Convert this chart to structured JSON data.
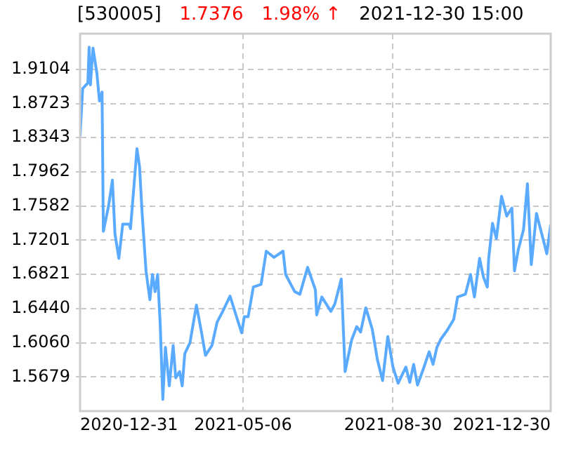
{
  "chart_data": {
    "type": "line",
    "title": "[530005]",
    "annotations": [
      "1.7376",
      "1.98% ↑",
      "2021-12-30 15:00"
    ],
    "x": [
      "2020-12-31",
      "2021-01-02",
      "2021-01-06",
      "2021-01-07",
      "2021-01-08",
      "2021-01-10",
      "2021-01-13",
      "2021-01-15",
      "2021-01-17",
      "2021-01-18",
      "2021-01-22",
      "2021-01-25",
      "2021-01-27",
      "2021-01-30",
      "2021-02-02",
      "2021-02-07",
      "2021-02-08",
      "2021-02-13",
      "2021-02-15",
      "2021-02-17",
      "2021-02-20",
      "2021-02-23",
      "2021-02-25",
      "2021-02-27",
      "2021-03-01",
      "2021-03-03",
      "2021-03-05",
      "2021-03-07",
      "2021-03-10",
      "2021-03-13",
      "2021-03-15",
      "2021-03-18",
      "2021-03-20",
      "2021-03-22",
      "2021-03-26",
      "2021-03-31",
      "2021-04-04",
      "2021-04-07",
      "2021-04-12",
      "2021-04-16",
      "2021-04-20",
      "2021-04-26",
      "2021-05-01",
      "2021-05-05",
      "2021-05-07",
      "2021-05-10",
      "2021-05-14",
      "2021-05-20",
      "2021-05-24",
      "2021-05-30",
      "2021-06-06",
      "2021-06-08",
      "2021-06-12",
      "2021-06-15",
      "2021-06-19",
      "2021-06-25",
      "2021-07-01",
      "2021-07-02",
      "2021-07-06",
      "2021-07-13",
      "2021-07-16",
      "2021-07-21",
      "2021-07-24",
      "2021-07-29",
      "2021-08-02",
      "2021-08-05",
      "2021-08-09",
      "2021-08-14",
      "2021-08-18",
      "2021-08-22",
      "2021-08-26",
      "2021-08-30",
      "2021-09-03",
      "2021-09-09",
      "2021-09-12",
      "2021-09-15",
      "2021-09-18",
      "2021-09-23",
      "2021-09-27",
      "2021-09-30",
      "2021-10-03",
      "2021-10-06",
      "2021-10-11",
      "2021-10-16",
      "2021-10-19",
      "2021-10-25",
      "2021-10-29",
      "2021-11-01",
      "2021-11-05",
      "2021-11-08",
      "2021-11-11",
      "2021-11-12",
      "2021-11-15",
      "2021-11-18",
      "2021-11-22",
      "2021-11-26",
      "2021-11-30",
      "2021-12-02",
      "2021-12-05",
      "2021-12-09",
      "2021-12-12",
      "2021-12-15",
      "2021-12-19",
      "2021-12-24",
      "2021-12-27",
      "2021-12-30"
    ],
    "series": [
      {
        "color": "#5aabff",
        "values": [
          1.836,
          1.889,
          1.895,
          1.935,
          1.893,
          1.934,
          1.906,
          1.875,
          1.885,
          1.73,
          1.758,
          1.787,
          1.727,
          1.7,
          1.738,
          1.738,
          1.733,
          1.822,
          1.802,
          1.75,
          1.686,
          1.654,
          1.682,
          1.663,
          1.682,
          1.626,
          1.543,
          1.601,
          1.558,
          1.603,
          1.567,
          1.574,
          1.558,
          1.594,
          1.606,
          1.648,
          1.617,
          1.592,
          1.603,
          1.629,
          1.64,
          1.658,
          1.635,
          1.617,
          1.635,
          1.635,
          1.668,
          1.671,
          1.708,
          1.701,
          1.708,
          1.682,
          1.671,
          1.663,
          1.66,
          1.69,
          1.665,
          1.637,
          1.657,
          1.641,
          1.649,
          1.677,
          1.574,
          1.609,
          1.624,
          1.618,
          1.645,
          1.621,
          1.587,
          1.564,
          1.613,
          1.579,
          1.561,
          1.579,
          1.562,
          1.582,
          1.559,
          1.579,
          1.596,
          1.582,
          1.601,
          1.61,
          1.62,
          1.632,
          1.657,
          1.66,
          1.682,
          1.657,
          1.7,
          1.679,
          1.668,
          1.699,
          1.739,
          1.722,
          1.769,
          1.747,
          1.756,
          1.686,
          1.71,
          1.732,
          1.783,
          1.693,
          1.75,
          1.722,
          1.705,
          1.7376
        ]
      }
    ],
    "xlim": [
      "2020-12-31",
      "2021-12-30"
    ],
    "xticks": [
      "2020-12-31",
      "2021-05-06",
      "2021-08-30",
      "2021-12-30"
    ],
    "ylim": [
      1.53,
      1.95
    ],
    "yticks": [
      1.5679,
      {
        "value": 1.606,
        "label": "1.6060"
      },
      {
        "value": 1.644,
        "label": "1.6440"
      },
      1.6821,
      1.7201,
      1.7582,
      1.7962,
      1.8343,
      1.8723,
      1.9104
    ],
    "grid": true,
    "legend": false,
    "marker": "none",
    "line_style": "solid"
  }
}
